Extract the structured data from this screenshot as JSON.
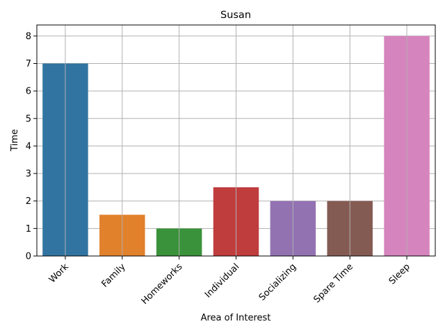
{
  "chart_data": {
    "type": "bar",
    "title": "Susan",
    "xlabel": "Area of Interest",
    "ylabel": "Time",
    "categories": [
      "Work",
      "Family",
      "Homeworks",
      "Individual",
      "Socializing",
      "Spare Time",
      "Sleep"
    ],
    "values": [
      7,
      1.5,
      1,
      2.5,
      2,
      2,
      8
    ],
    "colors": [
      "#3274a1",
      "#e1812c",
      "#3a923a",
      "#c03d3e",
      "#9372b2",
      "#845b53",
      "#d684bd"
    ],
    "ylim": [
      0,
      8.4
    ],
    "yticks": [
      "0",
      "1",
      "2",
      "3",
      "4",
      "5",
      "6",
      "7",
      "8"
    ],
    "grid": true,
    "xtick_rotation": 45
  }
}
